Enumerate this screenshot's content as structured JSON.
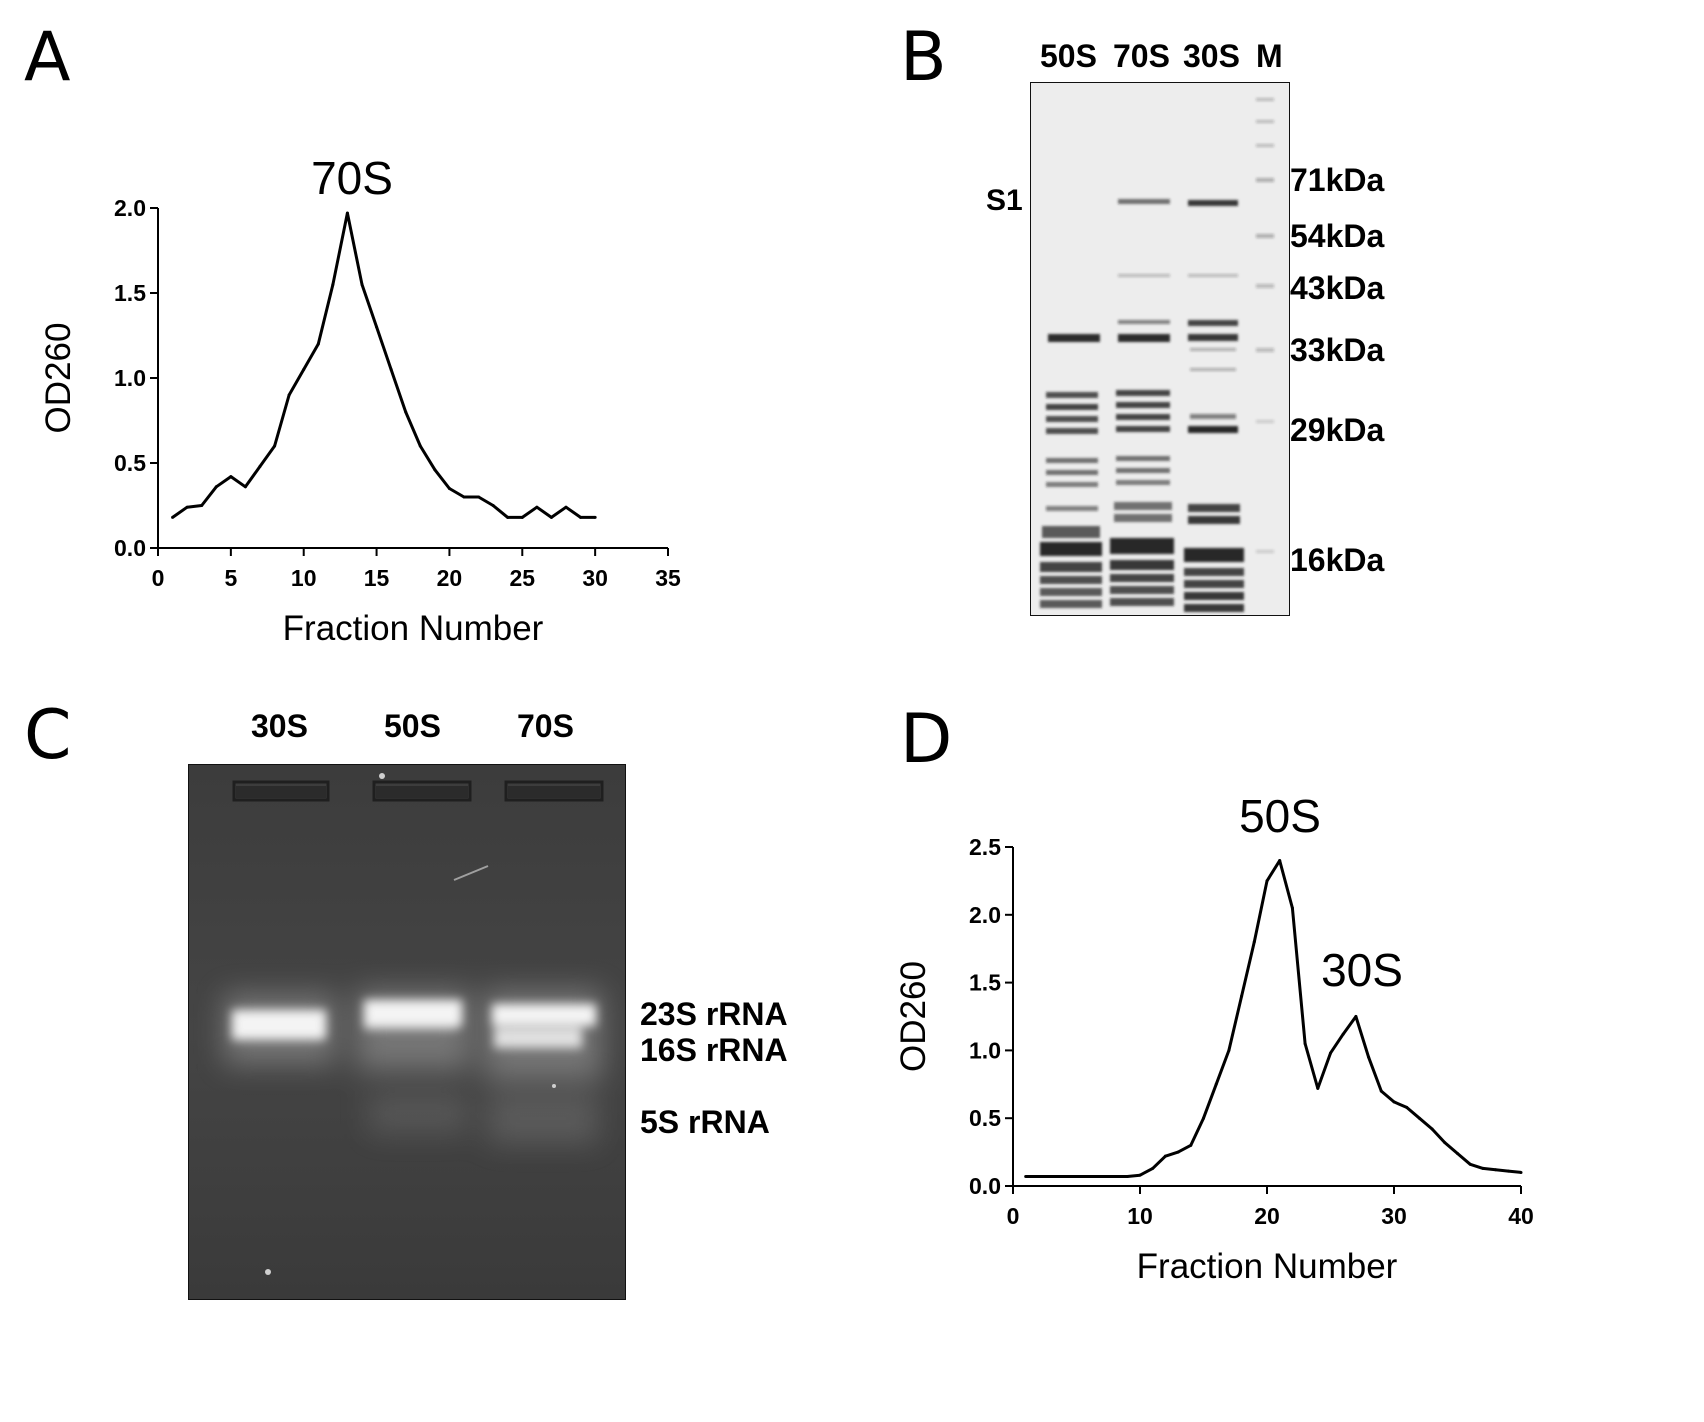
{
  "panels": {
    "A": {
      "letter": "A",
      "chart_data": {
        "type": "line",
        "xlabel": "Fraction Number",
        "ylabel": "OD260",
        "xlim": [
          0,
          35
        ],
        "ylim": [
          0,
          2.0
        ],
        "xticks": [
          "0",
          "5",
          "10",
          "15",
          "20",
          "25",
          "30",
          "35"
        ],
        "yticks": [
          "0.0",
          "0.5",
          "1.0",
          "1.5",
          "2.0"
        ],
        "annotation": "70S",
        "x": [
          1,
          2,
          3,
          4,
          5,
          6,
          7,
          8,
          9,
          10,
          11,
          12,
          13,
          14,
          15,
          16,
          17,
          18,
          19,
          20,
          21,
          22,
          23,
          24,
          25,
          26,
          27,
          28,
          29,
          30
        ],
        "y": [
          0.18,
          0.24,
          0.25,
          0.36,
          0.42,
          0.36,
          0.48,
          0.6,
          0.9,
          1.05,
          1.2,
          1.55,
          1.97,
          1.55,
          1.3,
          1.05,
          0.8,
          0.6,
          0.46,
          0.35,
          0.3,
          0.3,
          0.25,
          0.18,
          0.18,
          0.24,
          0.18,
          0.24,
          0.18,
          0.18
        ]
      }
    },
    "B": {
      "letter": "B",
      "lanes": [
        "50S",
        "70S",
        "30S",
        "M"
      ],
      "band_label": "S1",
      "markers": [
        "71kDa",
        "54kDa",
        "43kDa",
        "33kDa",
        "29kDa",
        "16kDa"
      ]
    },
    "C": {
      "letter": "C",
      "lanes": [
        "30S",
        "50S",
        "70S"
      ],
      "bands": [
        "23S rRNA",
        "16S rRNA",
        "5S rRNA"
      ]
    },
    "D": {
      "letter": "D",
      "chart_data": {
        "type": "line",
        "xlabel": "Fraction Number",
        "ylabel": "OD260",
        "xlim": [
          0,
          40
        ],
        "ylim": [
          0,
          2.5
        ],
        "xticks": [
          "0",
          "10",
          "20",
          "30",
          "40"
        ],
        "yticks": [
          "0.0",
          "0.5",
          "1.0",
          "1.5",
          "2.0",
          "2.5"
        ],
        "annotations": [
          "50S",
          "30S"
        ],
        "x": [
          1,
          2,
          3,
          4,
          5,
          6,
          7,
          8,
          9,
          10,
          11,
          12,
          13,
          14,
          15,
          16,
          17,
          18,
          19,
          20,
          21,
          22,
          23,
          24,
          25,
          26,
          27,
          28,
          29,
          30,
          31,
          32,
          33,
          34,
          35,
          36,
          37,
          38,
          39,
          40
        ],
        "y": [
          0.07,
          0.07,
          0.07,
          0.07,
          0.07,
          0.07,
          0.07,
          0.07,
          0.07,
          0.08,
          0.13,
          0.22,
          0.25,
          0.3,
          0.5,
          0.75,
          1.0,
          1.4,
          1.8,
          2.25,
          2.4,
          2.05,
          1.05,
          0.72,
          0.98,
          1.12,
          1.25,
          0.95,
          0.7,
          0.62,
          0.58,
          0.5,
          0.42,
          0.32,
          0.24,
          0.16,
          0.13,
          0.12,
          0.11,
          0.1
        ]
      }
    }
  }
}
